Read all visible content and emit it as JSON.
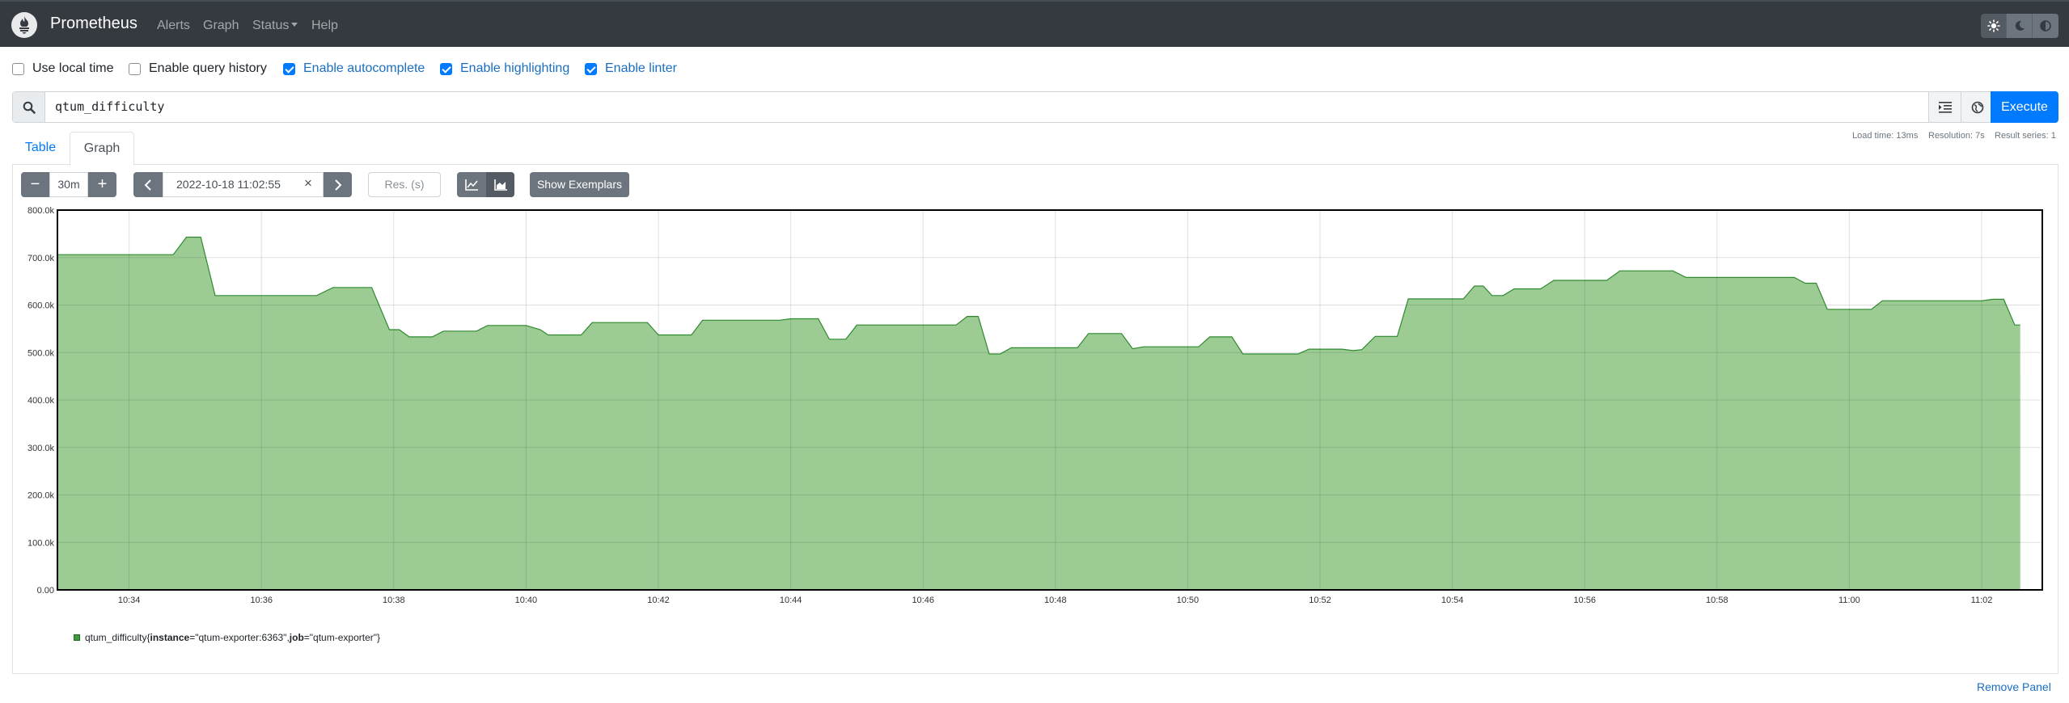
{
  "navbar": {
    "brand": "Prometheus",
    "links": [
      "Alerts",
      "Graph",
      "Status",
      "Help"
    ],
    "theme_buttons": [
      "sun-icon",
      "moon-icon",
      "half-circle-icon"
    ]
  },
  "options": {
    "use_local_time": {
      "label": "Use local time",
      "checked": false
    },
    "query_history": {
      "label": "Enable query history",
      "checked": false
    },
    "autocomplete": {
      "label": "Enable autocomplete",
      "checked": true
    },
    "highlighting": {
      "label": "Enable highlighting",
      "checked": true
    },
    "linter": {
      "label": "Enable linter",
      "checked": true
    }
  },
  "query": {
    "expression": "qtum_difficulty",
    "execute_label": "Execute"
  },
  "stats": {
    "load_time": "Load time: 13ms",
    "resolution": "Resolution: 7s",
    "result_series": "Result series: 1"
  },
  "tabs": {
    "table": "Table",
    "graph": "Graph"
  },
  "graph_controls": {
    "range": "30m",
    "end_time": "2022-10-18 11:02:55",
    "resolution_placeholder": "Res. (s)",
    "show_exemplars": "Show Exemplars",
    "minus": "−",
    "plus": "+"
  },
  "legend": {
    "metric": "qtum_difficulty",
    "open": "{",
    "label1_key": "instance",
    "label1_value": "=\"qtum-exporter:6363\", ",
    "label2_key": "job",
    "label2_value": "=\"qtum-exporter\"}"
  },
  "remove_panel": "Remove Panel",
  "colors": {
    "series_fill": "#9ccc94",
    "series_line": "#2f8a2f",
    "accent": "#007bff"
  },
  "chart_data": {
    "type": "area",
    "x_unit": "time",
    "x_ticks": [
      "10:34",
      "10:36",
      "10:38",
      "10:40",
      "10:42",
      "10:44",
      "10:46",
      "10:48",
      "10:50",
      "10:52",
      "10:54",
      "10:56",
      "10:58",
      "11:00",
      "11:02"
    ],
    "y_ticks": [
      "0.00",
      "100.0k",
      "200.0k",
      "300.0k",
      "400.0k",
      "500.0k",
      "600.0k",
      "700.0k",
      "800.0k"
    ],
    "ylim": [
      0,
      800000
    ],
    "xlim": [
      "10:32:55",
      "11:02:55"
    ],
    "grid": true,
    "series": [
      {
        "name": "qtum_difficulty{instance=\"qtum-exporter:6363\", job=\"qtum-exporter\"}",
        "points": [
          [
            "10:32:55",
            706000
          ],
          [
            "10:34:40",
            706000
          ],
          [
            "10:34:52",
            743000
          ],
          [
            "10:35:05",
            743000
          ],
          [
            "10:35:18",
            620000
          ],
          [
            "10:36:50",
            620000
          ],
          [
            "10:37:05",
            637000
          ],
          [
            "10:37:40",
            637000
          ],
          [
            "10:37:56",
            548000
          ],
          [
            "10:38:05",
            548000
          ],
          [
            "10:38:14",
            533000
          ],
          [
            "10:38:35",
            533000
          ],
          [
            "10:38:45",
            545000
          ],
          [
            "10:39:15",
            545000
          ],
          [
            "10:39:25",
            557000
          ],
          [
            "10:40:00",
            557000
          ],
          [
            "10:40:13",
            548000
          ],
          [
            "10:40:20",
            537000
          ],
          [
            "10:40:50",
            537000
          ],
          [
            "10:41:00",
            563000
          ],
          [
            "10:41:50",
            563000
          ],
          [
            "10:42:00",
            537000
          ],
          [
            "10:42:30",
            537000
          ],
          [
            "10:42:40",
            568000
          ],
          [
            "10:43:50",
            568000
          ],
          [
            "10:44:00",
            571000
          ],
          [
            "10:44:25",
            571000
          ],
          [
            "10:44:35",
            528000
          ],
          [
            "10:44:50",
            528000
          ],
          [
            "10:45:00",
            558000
          ],
          [
            "10:46:30",
            558000
          ],
          [
            "10:46:40",
            576000
          ],
          [
            "10:46:50",
            576000
          ],
          [
            "10:47:00",
            497000
          ],
          [
            "10:47:10",
            497000
          ],
          [
            "10:47:20",
            510000
          ],
          [
            "10:48:20",
            510000
          ],
          [
            "10:48:30",
            540000
          ],
          [
            "10:49:00",
            540000
          ],
          [
            "10:49:10",
            508000
          ],
          [
            "10:49:20",
            512000
          ],
          [
            "10:50:10",
            512000
          ],
          [
            "10:50:20",
            533000
          ],
          [
            "10:50:40",
            533000
          ],
          [
            "10:50:50",
            497000
          ],
          [
            "10:51:40",
            497000
          ],
          [
            "10:51:50",
            507000
          ],
          [
            "10:52:20",
            507000
          ],
          [
            "10:52:30",
            504000
          ],
          [
            "10:52:38",
            506000
          ],
          [
            "10:52:50",
            534000
          ],
          [
            "10:53:10",
            534000
          ],
          [
            "10:53:20",
            613000
          ],
          [
            "10:54:10",
            613000
          ],
          [
            "10:54:20",
            640000
          ],
          [
            "10:54:28",
            640000
          ],
          [
            "10:54:36",
            620000
          ],
          [
            "10:54:46",
            620000
          ],
          [
            "10:54:56",
            634000
          ],
          [
            "10:55:20",
            634000
          ],
          [
            "10:55:32",
            652000
          ],
          [
            "10:56:20",
            652000
          ],
          [
            "10:56:32",
            672000
          ],
          [
            "10:57:20",
            672000
          ],
          [
            "10:57:32",
            658000
          ],
          [
            "10:59:10",
            658000
          ],
          [
            "10:59:20",
            646000
          ],
          [
            "10:59:30",
            646000
          ],
          [
            "10:59:40",
            591000
          ],
          [
            "11:00:20",
            591000
          ],
          [
            "11:00:30",
            609000
          ],
          [
            "11:02:00",
            609000
          ],
          [
            "11:02:10",
            612000
          ],
          [
            "11:02:20",
            612000
          ],
          [
            "11:02:30",
            558000
          ],
          [
            "11:02:35",
            558000
          ]
        ]
      }
    ]
  }
}
